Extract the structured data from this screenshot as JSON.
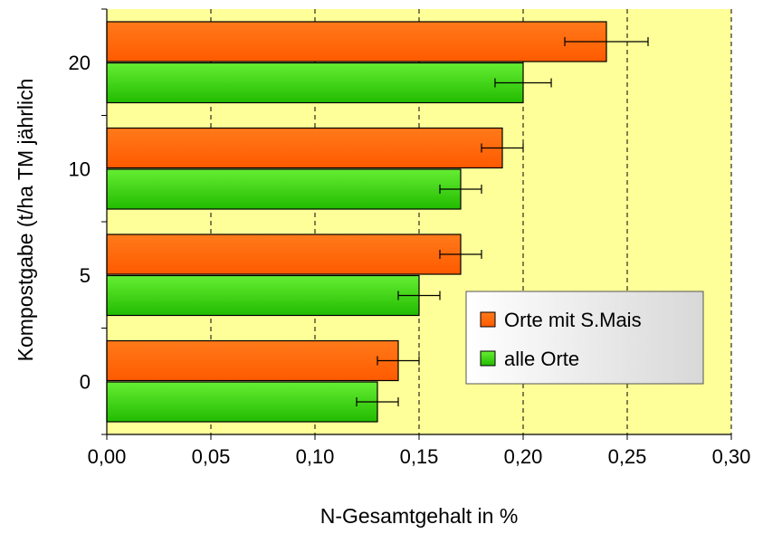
{
  "chart_data": {
    "type": "bar",
    "orientation": "horizontal",
    "categories": [
      "0",
      "5",
      "10",
      "20"
    ],
    "series": [
      {
        "name": "Orte mit S.Mais",
        "values": [
          0.14,
          0.17,
          0.19,
          0.24
        ],
        "errors": [
          0.01,
          0.01,
          0.01,
          0.02
        ],
        "color": "#ff6600"
      },
      {
        "name": "alle Orte",
        "values": [
          0.13,
          0.15,
          0.17,
          0.2
        ],
        "errors": [
          0.01,
          0.01,
          0.01,
          0.0135
        ],
        "color": "#33dd11"
      }
    ],
    "xlabel": "N-Gesamtgehalt in %",
    "ylabel": "Kompostgabe (t/ha TM jährlich",
    "xlim": [
      0,
      0.3
    ],
    "xticks": [
      "0,00",
      "0,05",
      "0,10",
      "0,15",
      "0,20",
      "0,25",
      "0,30"
    ],
    "grid": "vertical dashed",
    "legend_position": "right",
    "plot_background": "#ffff99"
  }
}
